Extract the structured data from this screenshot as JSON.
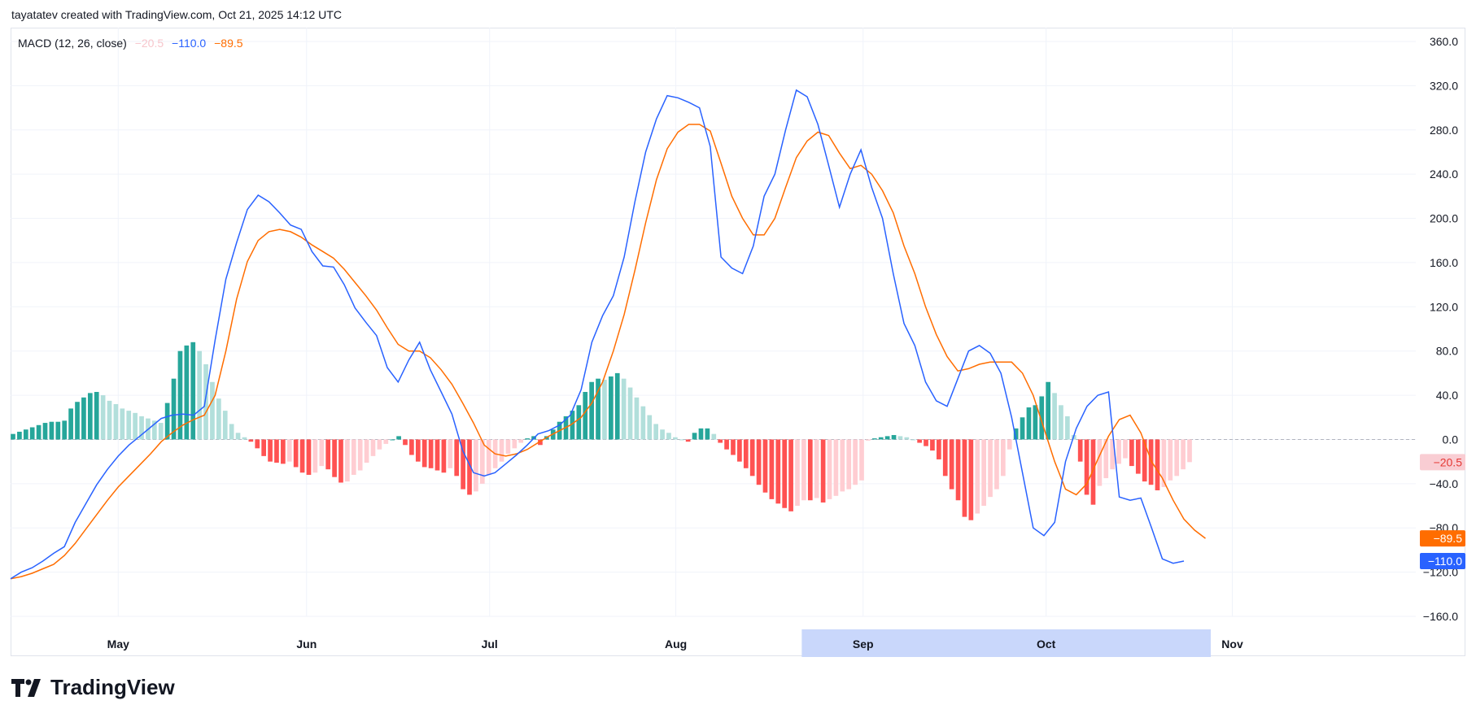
{
  "header": {
    "attribution": "tayatatev created with TradingView.com, Oct 21, 2025 14:12 UTC"
  },
  "legend": {
    "indicator": "MACD (12, 26, close)",
    "histogram": "−20.5",
    "macd": "−110.0",
    "signal": "−89.5"
  },
  "brand": {
    "name": "TradingView",
    "icon": "tradingview-logo-icon"
  },
  "colors": {
    "macd": "#2962ff",
    "signal": "#ff6d00",
    "hist_pos_strong": "#26a69a",
    "hist_pos_weak": "#b2dfdb",
    "hist_neg_strong": "#ff5252",
    "hist_neg_weak": "#ffcdd2",
    "grid": "#f0f3fa",
    "highlight": "#c9d7fb"
  },
  "chart_data": {
    "type": "line",
    "title": "MACD (12, 26, close)",
    "ylim": [
      -160,
      360
    ],
    "y_ticks": [
      "360.0",
      "320.0",
      "280.0",
      "240.0",
      "200.0",
      "160.0",
      "120.0",
      "80.0",
      "40.0",
      "0.0",
      "−40.0",
      "−80.0",
      "−120.0",
      "−160.0"
    ],
    "x_ticks": [
      {
        "label": "May",
        "index": 10
      },
      {
        "label": "Jun",
        "index": 27.5
      },
      {
        "label": "Jul",
        "index": 44.5
      },
      {
        "label": "Aug",
        "index": 61.8
      },
      {
        "label": "Sep",
        "index": 79.2
      },
      {
        "label": "Oct",
        "index": 96.2
      },
      {
        "label": "Nov",
        "index": 113.5
      }
    ],
    "highlighted_range": {
      "from": "Sep",
      "to": "Oct",
      "start_index": 73.5,
      "end_index": 111.5
    },
    "zero_line": true,
    "grid": true,
    "price_labels": [
      {
        "text": "−20.5",
        "value": -20.5,
        "series": "histogram"
      },
      {
        "text": "−89.5",
        "value": -89.5,
        "series": "signal"
      },
      {
        "text": "−110.0",
        "value": -110.0,
        "series": "macd"
      }
    ],
    "series": [
      {
        "name": "MACD",
        "type": "line",
        "values": [
          -126,
          -120,
          -116,
          -110,
          -103,
          -97,
          -75,
          -58,
          -41,
          -27,
          -15,
          -5,
          3,
          11,
          19,
          22,
          23,
          22,
          30,
          90,
          145,
          178,
          208,
          221,
          215,
          205,
          194,
          190,
          170,
          157,
          156,
          140,
          119,
          106,
          94,
          65,
          52,
          72,
          88,
          63,
          43,
          23,
          -10,
          -30,
          -33,
          -30,
          -22,
          -14,
          -5,
          5,
          8,
          13,
          22,
          45,
          88,
          112,
          130,
          165,
          215,
          260,
          290,
          311,
          309,
          305,
          300,
          265,
          165,
          155,
          150,
          175,
          220,
          240,
          280,
          316,
          310,
          285,
          248,
          210,
          240,
          262,
          228,
          200,
          150,
          105,
          85,
          52,
          35,
          30,
          55,
          80,
          85,
          78,
          60,
          20,
          -30,
          -80,
          -87,
          -75,
          -20,
          10,
          30,
          40,
          43,
          -52,
          -55,
          -53,
          -80,
          -108,
          -112,
          -110
        ],
        "color": "#2962ff"
      },
      {
        "name": "Signal",
        "type": "line",
        "values": [
          -126,
          -124,
          -121,
          -117,
          -113,
          -105,
          -94,
          -81,
          -68,
          -55,
          -43,
          -33,
          -23,
          -13,
          -2,
          6,
          13,
          18,
          22,
          40,
          80,
          127,
          161,
          180,
          188,
          190,
          188,
          183,
          176,
          170,
          164,
          154,
          142,
          130,
          117,
          101,
          86,
          80,
          80,
          74,
          63,
          50,
          33,
          15,
          -5,
          -13,
          -15,
          -13,
          -9,
          -3,
          3,
          8,
          13,
          20,
          33,
          52,
          80,
          113,
          153,
          196,
          235,
          263,
          278,
          285,
          285,
          279,
          250,
          220,
          200,
          185,
          185,
          200,
          228,
          255,
          270,
          278,
          275,
          259,
          245,
          248,
          240,
          225,
          205,
          175,
          150,
          120,
          95,
          75,
          62,
          64,
          68,
          70,
          70,
          70,
          60,
          40,
          10,
          -20,
          -45,
          -50,
          -40,
          -18,
          3,
          18,
          22,
          6,
          -20,
          -35,
          -55,
          -72,
          -82,
          -89.5
        ],
        "color": "#ff6d00"
      },
      {
        "name": "Histogram",
        "type": "bar",
        "values": [
          5,
          7,
          9,
          11,
          13,
          15,
          16,
          16,
          17,
          28,
          34,
          38,
          42,
          43,
          40,
          35,
          32,
          28,
          26,
          24,
          21,
          19,
          17,
          15,
          33,
          55,
          80,
          85,
          88,
          80,
          68,
          52,
          37,
          26,
          14,
          6,
          2,
          -2,
          -8,
          -15,
          -20,
          -21,
          -22,
          -20,
          -25,
          -30,
          -32,
          -30,
          -24,
          -27,
          -34,
          -39,
          -38,
          -32,
          -28,
          -21,
          -15,
          -9,
          -4,
          0,
          3,
          -5,
          -14,
          -20,
          -25,
          -26,
          -28,
          -30,
          -26,
          -33,
          -45,
          -50,
          -47,
          -40,
          -32,
          -26,
          -20,
          -13,
          -8,
          -3,
          1,
          3,
          -5,
          3,
          9,
          16,
          21,
          26,
          31,
          43,
          52,
          55,
          54,
          57,
          60,
          55,
          47,
          38,
          30,
          22,
          14,
          9,
          6,
          2,
          0,
          -2,
          6,
          10,
          10,
          5,
          -3,
          -9,
          -14,
          -20,
          -26,
          -33,
          -41,
          -48,
          -54,
          -58,
          -62,
          -65,
          -60,
          -55,
          -55,
          -53,
          -57,
          -54,
          -51,
          -47,
          -45,
          -41,
          -37,
          -1,
          1,
          2,
          3,
          4,
          3,
          2,
          0,
          -3,
          -6,
          -10,
          -18,
          -33,
          -45,
          -55,
          -70,
          -73,
          -67,
          -60,
          -52,
          -45,
          -33,
          -9,
          10,
          20,
          29,
          31,
          39,
          52,
          42,
          31,
          21,
          4,
          -20,
          -50,
          -59,
          -42,
          -35,
          -27,
          -22,
          -17,
          -24,
          -31,
          -38,
          -41,
          -46,
          -43,
          -37,
          -33,
          -27,
          -20.5
        ],
        "color": "#26a69a"
      }
    ]
  }
}
